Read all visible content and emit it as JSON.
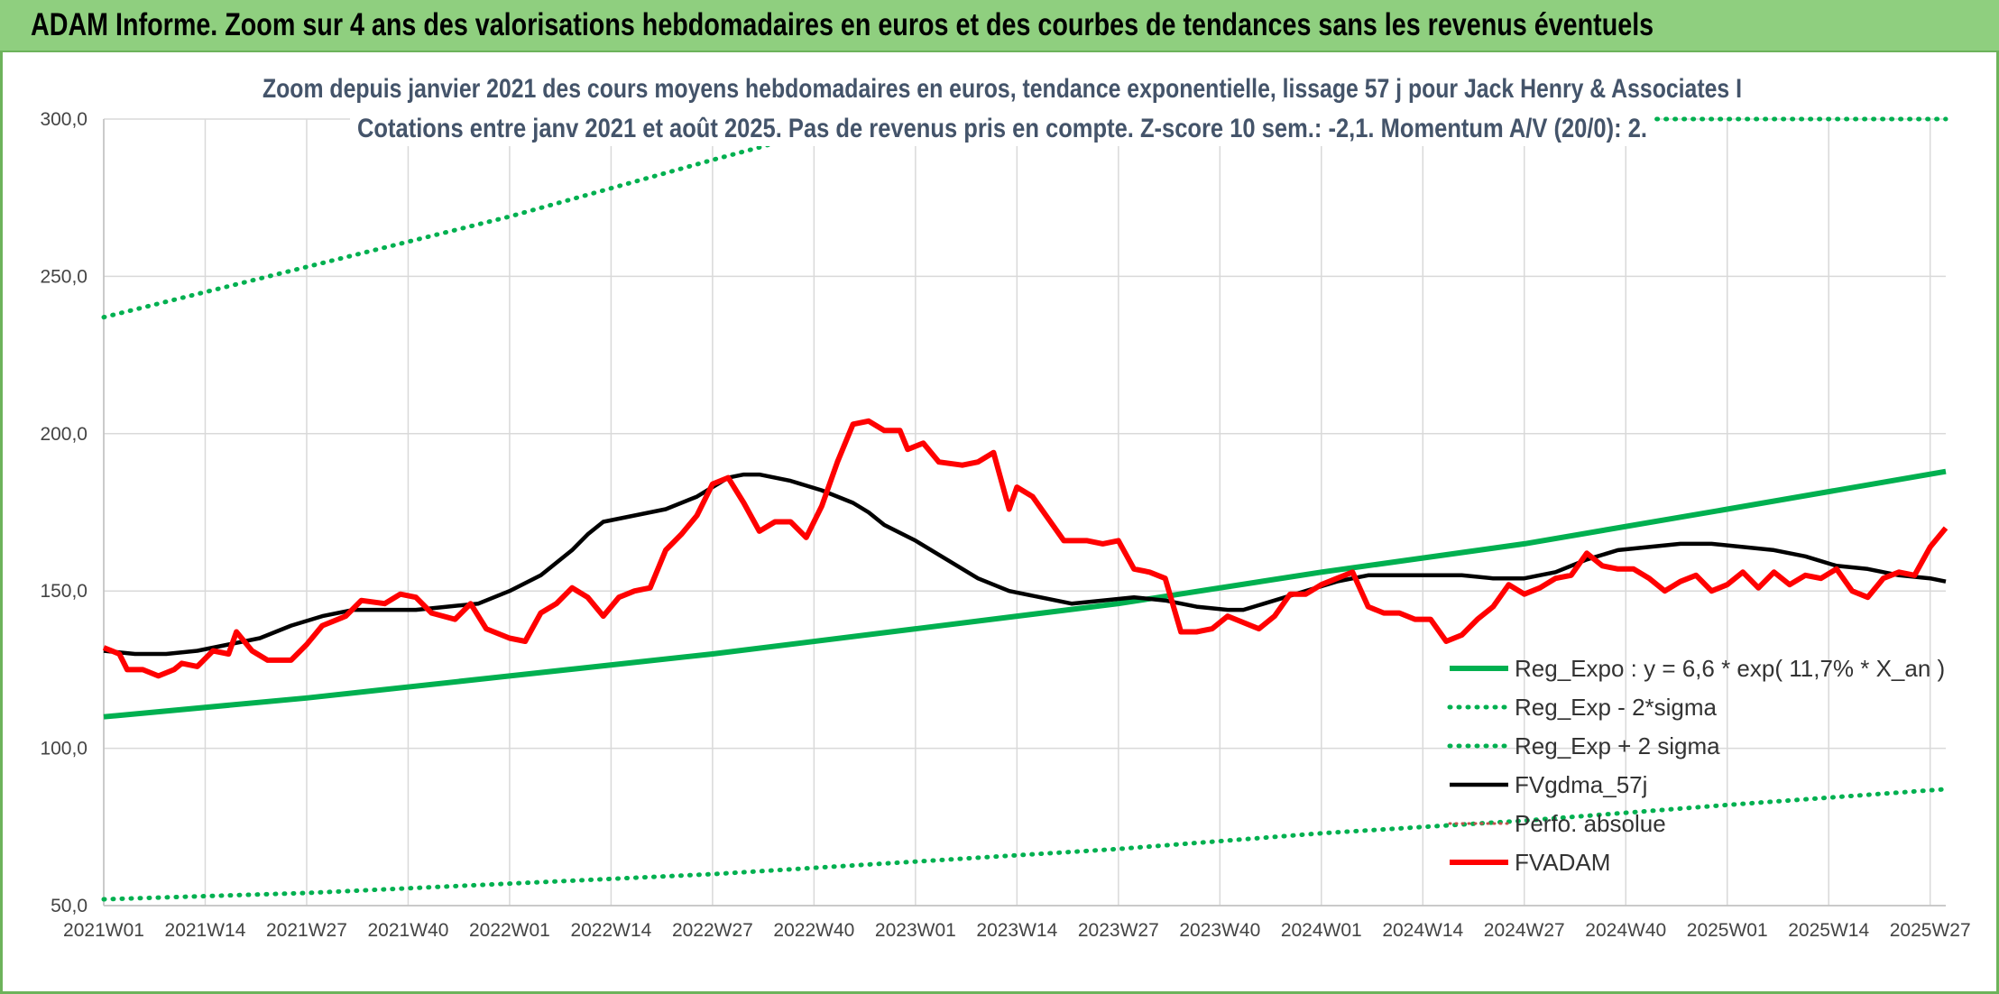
{
  "header": {
    "title": "ADAM Informe. Zoom sur 4 ans des valorisations hebdomadaires en euros et des courbes de tendances sans les revenus éventuels"
  },
  "colors": {
    "header_bg": "#8fcf7f",
    "reg_expo": "#00b050",
    "fvgdma": "#000000",
    "fvadam": "#ff0000",
    "grid": "#d9d9d9",
    "subtitle": "#44546a"
  },
  "chart_data": {
    "type": "line",
    "title_lines": [
      "Zoom depuis janvier 2021 des cours moyens hebdomadaires en euros, tendance exponentielle, lissage 57 j pour Jack Henry & Associates I",
      "Cotations entre janv 2021 et août 2025. Pas de revenus pris en compte. Z-score 10 sem.: -2,1. Momentum A/V (20/0): 2."
    ],
    "ylim": [
      50,
      300
    ],
    "yticks": [
      "50,0",
      "100,0",
      "150,0",
      "200,0",
      "250,0",
      "300,0"
    ],
    "ytick_values": [
      50,
      100,
      150,
      200,
      250,
      300
    ],
    "x_week_range": [
      0,
      236
    ],
    "xticks": [
      {
        "label": "2021W01",
        "week": 0
      },
      {
        "label": "2021W14",
        "week": 13
      },
      {
        "label": "2021W27",
        "week": 26
      },
      {
        "label": "2021W40",
        "week": 39
      },
      {
        "label": "2022W01",
        "week": 52
      },
      {
        "label": "2022W14",
        "week": 65
      },
      {
        "label": "2022W27",
        "week": 78
      },
      {
        "label": "2022W40",
        "week": 91
      },
      {
        "label": "2023W01",
        "week": 104
      },
      {
        "label": "2023W14",
        "week": 117
      },
      {
        "label": "2023W27",
        "week": 130
      },
      {
        "label": "2023W40",
        "week": 143
      },
      {
        "label": "2024W01",
        "week": 156
      },
      {
        "label": "2024W14",
        "week": 169
      },
      {
        "label": "2024W27",
        "week": 182
      },
      {
        "label": "2024W40",
        "week": 195
      },
      {
        "label": "2025W01",
        "week": 208
      },
      {
        "label": "2025W14",
        "week": 221
      },
      {
        "label": "2025W27",
        "week": 234
      }
    ],
    "legend": [
      {
        "label": "Reg_Expo : y = 6,6 * exp( 11,7% *  X_an )",
        "style": "solid-thick",
        "color": "#00b050"
      },
      {
        "label": "Reg_Exp - 2*sigma",
        "style": "dotted",
        "color": "#00b050"
      },
      {
        "label": "Reg_Exp + 2 sigma",
        "style": "dotted",
        "color": "#00b050"
      },
      {
        "label": "FVgdma_57j",
        "style": "solid",
        "color": "#000000"
      },
      {
        "label": "Perfo. absolue",
        "style": "dotted-thin",
        "color": "#c0504d"
      },
      {
        "label": "FVADAM",
        "style": "solid-thick",
        "color": "#ff0000"
      }
    ],
    "series": [
      {
        "name": "Reg_Expo : y = 6,6 * exp( 11,7% *  X_an )",
        "points": [
          [
            0,
            110
          ],
          [
            26,
            116
          ],
          [
            52,
            123
          ],
          [
            78,
            130
          ],
          [
            104,
            138
          ],
          [
            130,
            146
          ],
          [
            156,
            156
          ],
          [
            182,
            165
          ],
          [
            208,
            176
          ],
          [
            236,
            188
          ]
        ]
      },
      {
        "name": "Reg_Exp - 2*sigma",
        "points": [
          [
            0,
            52
          ],
          [
            26,
            54
          ],
          [
            52,
            57
          ],
          [
            78,
            60
          ],
          [
            104,
            64
          ],
          [
            130,
            68
          ],
          [
            156,
            73
          ],
          [
            182,
            77
          ],
          [
            208,
            82
          ],
          [
            236,
            87
          ]
        ]
      },
      {
        "name": "Reg_Exp + 2 sigma",
        "points": [
          [
            0,
            237
          ],
          [
            13,
            245
          ],
          [
            26,
            253
          ],
          [
            39,
            261
          ],
          [
            52,
            269
          ],
          [
            65,
            278
          ],
          [
            78,
            287
          ],
          [
            84,
            291
          ],
          [
            91,
            296
          ],
          [
            97,
            300
          ],
          [
            236,
            300
          ]
        ]
      },
      {
        "name": "FVgdma_57j",
        "points": [
          [
            0,
            131
          ],
          [
            4,
            130
          ],
          [
            8,
            130
          ],
          [
            12,
            131
          ],
          [
            16,
            133
          ],
          [
            20,
            135
          ],
          [
            24,
            139
          ],
          [
            28,
            142
          ],
          [
            32,
            144
          ],
          [
            36,
            144
          ],
          [
            40,
            144
          ],
          [
            44,
            145
          ],
          [
            48,
            146
          ],
          [
            52,
            150
          ],
          [
            56,
            155
          ],
          [
            60,
            163
          ],
          [
            62,
            168
          ],
          [
            64,
            172
          ],
          [
            68,
            174
          ],
          [
            72,
            176
          ],
          [
            76,
            180
          ],
          [
            78,
            183
          ],
          [
            80,
            186
          ],
          [
            82,
            187
          ],
          [
            84,
            187
          ],
          [
            88,
            185
          ],
          [
            92,
            182
          ],
          [
            96,
            178
          ],
          [
            98,
            175
          ],
          [
            100,
            171
          ],
          [
            104,
            166
          ],
          [
            108,
            160
          ],
          [
            112,
            154
          ],
          [
            116,
            150
          ],
          [
            120,
            148
          ],
          [
            124,
            146
          ],
          [
            128,
            147
          ],
          [
            132,
            148
          ],
          [
            136,
            147
          ],
          [
            140,
            145
          ],
          [
            144,
            144
          ],
          [
            146,
            144
          ],
          [
            150,
            147
          ],
          [
            154,
            150
          ],
          [
            158,
            153
          ],
          [
            162,
            155
          ],
          [
            166,
            155
          ],
          [
            170,
            155
          ],
          [
            174,
            155
          ],
          [
            178,
            154
          ],
          [
            182,
            154
          ],
          [
            186,
            156
          ],
          [
            190,
            160
          ],
          [
            194,
            163
          ],
          [
            198,
            164
          ],
          [
            202,
            165
          ],
          [
            206,
            165
          ],
          [
            210,
            164
          ],
          [
            214,
            163
          ],
          [
            218,
            161
          ],
          [
            222,
            158
          ],
          [
            226,
            157
          ],
          [
            230,
            155
          ],
          [
            234,
            154
          ],
          [
            236,
            153
          ]
        ]
      },
      {
        "name": "Perfo. absolue",
        "points": []
      },
      {
        "name": "FVADAM",
        "points": [
          [
            0,
            132
          ],
          [
            2,
            130
          ],
          [
            3,
            125
          ],
          [
            5,
            125
          ],
          [
            7,
            123
          ],
          [
            9,
            125
          ],
          [
            10,
            127
          ],
          [
            12,
            126
          ],
          [
            14,
            131
          ],
          [
            16,
            130
          ],
          [
            17,
            137
          ],
          [
            19,
            131
          ],
          [
            21,
            128
          ],
          [
            24,
            128
          ],
          [
            26,
            133
          ],
          [
            28,
            139
          ],
          [
            31,
            142
          ],
          [
            33,
            147
          ],
          [
            36,
            146
          ],
          [
            38,
            149
          ],
          [
            40,
            148
          ],
          [
            42,
            143
          ],
          [
            45,
            141
          ],
          [
            47,
            146
          ],
          [
            49,
            138
          ],
          [
            52,
            135
          ],
          [
            54,
            134
          ],
          [
            56,
            143
          ],
          [
            58,
            146
          ],
          [
            60,
            151
          ],
          [
            62,
            148
          ],
          [
            64,
            142
          ],
          [
            66,
            148
          ],
          [
            68,
            150
          ],
          [
            70,
            151
          ],
          [
            72,
            163
          ],
          [
            74,
            168
          ],
          [
            76,
            174
          ],
          [
            78,
            184
          ],
          [
            80,
            186
          ],
          [
            82,
            178
          ],
          [
            84,
            169
          ],
          [
            86,
            172
          ],
          [
            88,
            172
          ],
          [
            90,
            167
          ],
          [
            92,
            177
          ],
          [
            94,
            191
          ],
          [
            96,
            203
          ],
          [
            98,
            204
          ],
          [
            100,
            201
          ],
          [
            102,
            201
          ],
          [
            103,
            195
          ],
          [
            105,
            197
          ],
          [
            107,
            191
          ],
          [
            110,
            190
          ],
          [
            112,
            191
          ],
          [
            114,
            194
          ],
          [
            116,
            176
          ],
          [
            117,
            183
          ],
          [
            119,
            180
          ],
          [
            121,
            173
          ],
          [
            123,
            166
          ],
          [
            126,
            166
          ],
          [
            128,
            165
          ],
          [
            130,
            166
          ],
          [
            132,
            157
          ],
          [
            134,
            156
          ],
          [
            136,
            154
          ],
          [
            138,
            137
          ],
          [
            140,
            137
          ],
          [
            142,
            138
          ],
          [
            144,
            142
          ],
          [
            146,
            140
          ],
          [
            148,
            138
          ],
          [
            150,
            142
          ],
          [
            152,
            149
          ],
          [
            154,
            149
          ],
          [
            156,
            152
          ],
          [
            158,
            154
          ],
          [
            160,
            156
          ],
          [
            162,
            145
          ],
          [
            164,
            143
          ],
          [
            166,
            143
          ],
          [
            168,
            141
          ],
          [
            170,
            141
          ],
          [
            172,
            134
          ],
          [
            174,
            136
          ],
          [
            176,
            141
          ],
          [
            178,
            145
          ],
          [
            180,
            152
          ],
          [
            182,
            149
          ],
          [
            184,
            151
          ],
          [
            186,
            154
          ],
          [
            188,
            155
          ],
          [
            190,
            162
          ],
          [
            192,
            158
          ],
          [
            194,
            157
          ],
          [
            196,
            157
          ],
          [
            198,
            154
          ],
          [
            200,
            150
          ],
          [
            202,
            153
          ],
          [
            204,
            155
          ],
          [
            206,
            150
          ],
          [
            208,
            152
          ],
          [
            210,
            156
          ],
          [
            212,
            151
          ],
          [
            214,
            156
          ],
          [
            216,
            152
          ],
          [
            218,
            155
          ],
          [
            220,
            154
          ],
          [
            222,
            157
          ],
          [
            224,
            150
          ],
          [
            226,
            148
          ],
          [
            228,
            154
          ],
          [
            230,
            156
          ],
          [
            232,
            155
          ],
          [
            234,
            164
          ],
          [
            236,
            170
          ]
        ]
      }
    ]
  }
}
